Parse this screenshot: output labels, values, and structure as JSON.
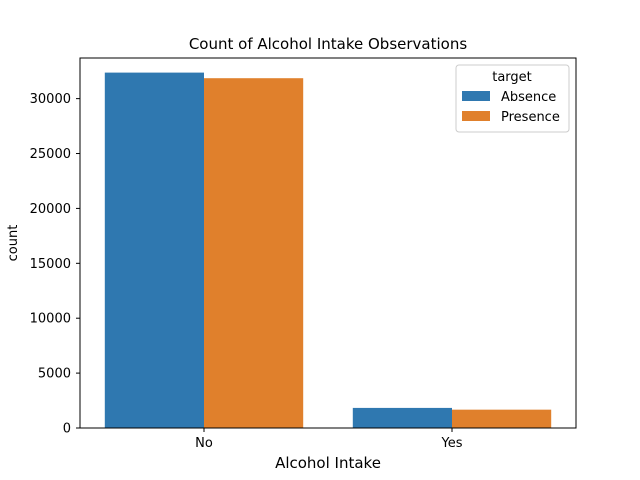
{
  "chart_data": {
    "type": "bar",
    "title": "Count of Alcohol Intake Observations",
    "xlabel": "Alcohol Intake",
    "ylabel": "count",
    "categories": [
      "No",
      "Yes"
    ],
    "series": [
      {
        "name": "Absence",
        "values": [
          32370,
          1830
        ],
        "color": "#2f78b0"
      },
      {
        "name": "Presence",
        "values": [
          31860,
          1670
        ],
        "color": "#e0802c"
      }
    ],
    "yticks": [
      0,
      5000,
      10000,
      15000,
      20000,
      25000,
      30000
    ],
    "ylim": [
      0,
      33700
    ],
    "legend": {
      "title": "target",
      "position": "top-right"
    },
    "grid": false
  }
}
